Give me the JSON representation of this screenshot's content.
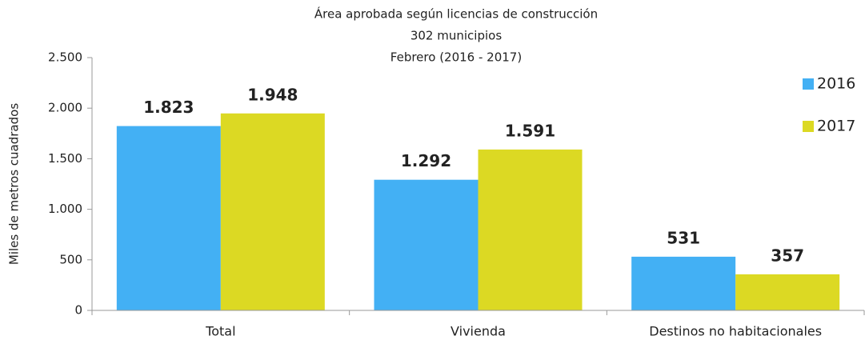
{
  "chart_data": {
    "type": "bar",
    "title": "Área aprobada según licencias de construcción",
    "subtitle": [
      "302 municipios",
      "Febrero (2016 - 2017)"
    ],
    "y_label": "Miles de metros cuadrados",
    "categories": [
      "Total",
      "Vivienda",
      "Destinos no habitacionales"
    ],
    "series": [
      {
        "name": "2016",
        "color": "#43b0f4",
        "values": [
          1823,
          1292,
          531
        ],
        "value_labels": [
          "1.823",
          "1.292",
          "531"
        ]
      },
      {
        "name": "2017",
        "color": "#dcd923",
        "values": [
          1948,
          1591,
          357
        ],
        "value_labels": [
          "1.948",
          "1.591",
          "357"
        ]
      }
    ],
    "ylim": [
      0,
      2500
    ],
    "yticks": [
      0,
      500,
      {
        "value": 1000,
        "label": "1.000"
      },
      {
        "value": 1500,
        "label": "1.500"
      },
      {
        "value": 2000,
        "label": "2.000"
      },
      {
        "value": 2500,
        "label": "2.500"
      }
    ],
    "legend": "right"
  }
}
